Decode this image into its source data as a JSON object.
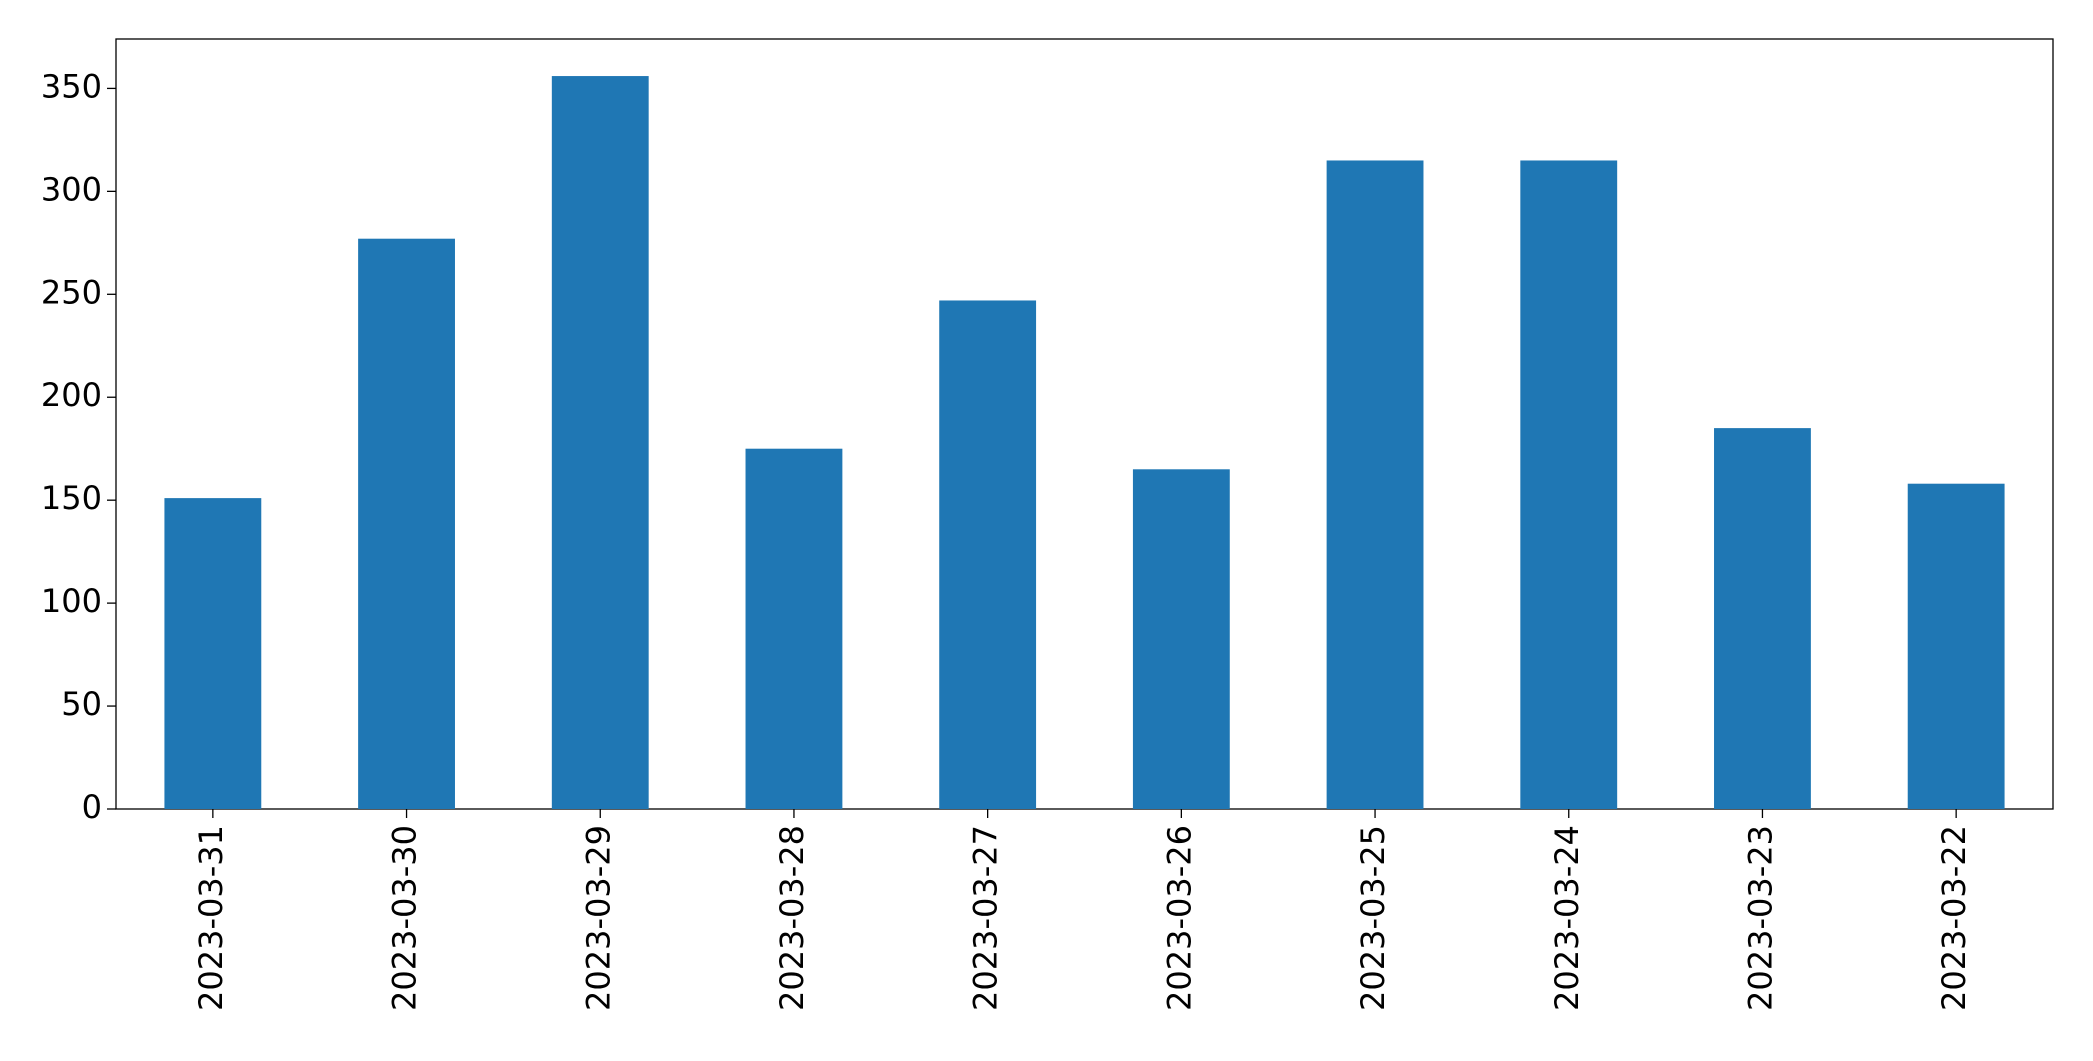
{
  "chart_data": {
    "type": "bar",
    "categories": [
      "2023-03-31",
      "2023-03-30",
      "2023-03-29",
      "2023-03-28",
      "2023-03-27",
      "2023-03-26",
      "2023-03-25",
      "2023-03-24",
      "2023-03-23",
      "2023-03-22"
    ],
    "values": [
      151,
      277,
      356,
      175,
      247,
      165,
      315,
      315,
      185,
      158
    ],
    "color": "#1f77b4",
    "ylim": [
      0,
      374
    ],
    "yticks": [
      0,
      50,
      100,
      150,
      200,
      250,
      300,
      350
    ],
    "grid": false
  }
}
